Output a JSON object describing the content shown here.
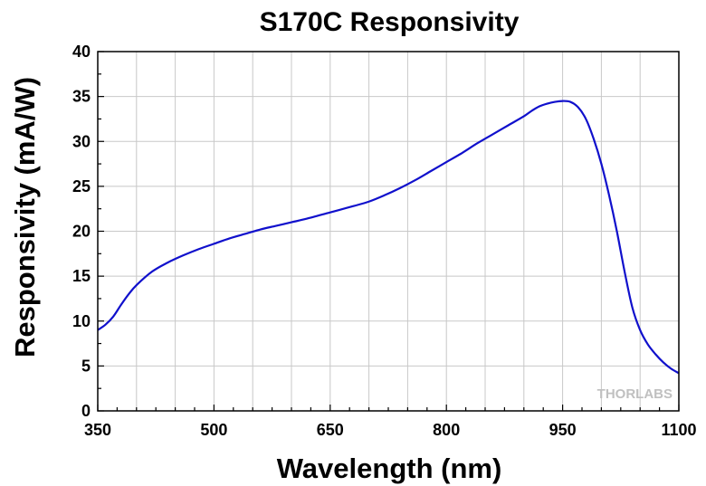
{
  "chart_data": {
    "type": "line",
    "title": "S170C Responsivity",
    "xlabel": "Wavelength (nm)",
    "ylabel": "Responsivity (mA/W)",
    "xlim": [
      350,
      1100
    ],
    "ylim": [
      0,
      40
    ],
    "x_ticks": [
      350,
      500,
      650,
      800,
      950,
      1100
    ],
    "y_ticks": [
      0,
      5,
      10,
      15,
      20,
      25,
      30,
      35,
      40
    ],
    "grid": true,
    "line_color": "#1010cc",
    "grid_color": "#c8c8c8",
    "series": [
      {
        "x": [
          350,
          360,
          370,
          380,
          390,
          400,
          420,
          440,
          460,
          480,
          500,
          520,
          540,
          560,
          580,
          600,
          620,
          650,
          680,
          700,
          720,
          740,
          760,
          780,
          800,
          820,
          840,
          860,
          880,
          900,
          910,
          920,
          930,
          940,
          950,
          960,
          970,
          980,
          990,
          1000,
          1010,
          1020,
          1030,
          1040,
          1050,
          1060,
          1070,
          1080,
          1090,
          1100
        ],
        "y": [
          9.0,
          9.6,
          10.5,
          11.8,
          13.0,
          14.0,
          15.5,
          16.5,
          17.3,
          18.0,
          18.6,
          19.2,
          19.7,
          20.2,
          20.6,
          21.0,
          21.4,
          22.1,
          22.8,
          23.3,
          24.0,
          24.8,
          25.7,
          26.7,
          27.7,
          28.7,
          29.8,
          30.8,
          31.8,
          32.8,
          33.4,
          33.9,
          34.2,
          34.4,
          34.5,
          34.4,
          33.8,
          32.5,
          30.3,
          27.5,
          24.0,
          20.0,
          15.5,
          11.5,
          9.0,
          7.4,
          6.3,
          5.4,
          4.7,
          4.2
        ]
      }
    ]
  },
  "watermark": {
    "text": "THORLABS",
    "color": "#c0c0c0"
  }
}
